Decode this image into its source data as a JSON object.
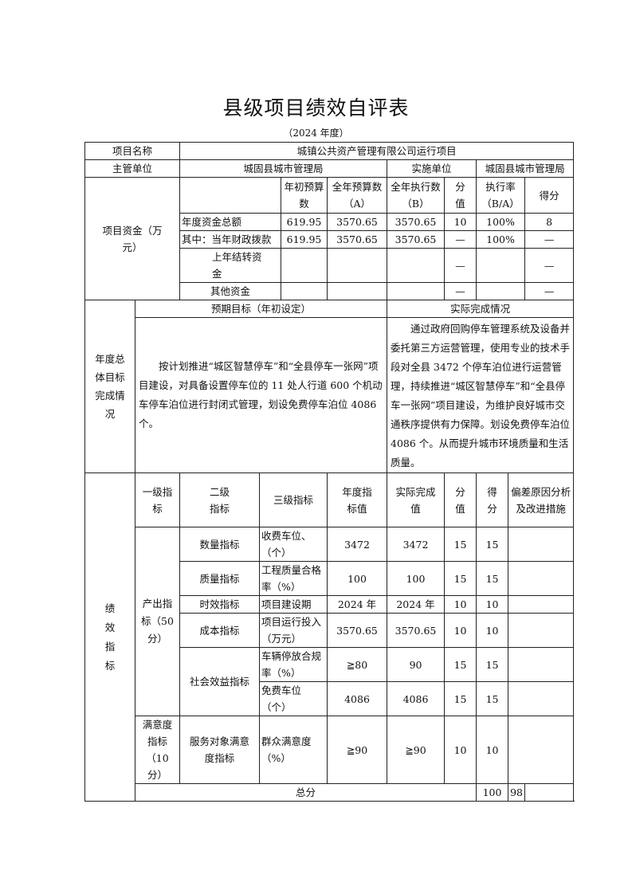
{
  "title": "县级项目绩效自评表",
  "subtitle": "（2024 年度）",
  "project": {
    "name_label": "项目名称",
    "name": "城镇公共资产管理有限公司运行项目",
    "dept_label": "主管单位",
    "dept": "城固县城市管理局",
    "impl_label": "实施单位",
    "impl": "城固县城市管理局"
  },
  "funds": {
    "label": "项目资金（万元）",
    "headers": [
      "年初预算数",
      "全年预算数（A）",
      "全年执行数（B）",
      "分值",
      "执行率（B/A）",
      "得分"
    ],
    "rows": [
      {
        "label": "年度资金总额",
        "initial": "619.95",
        "budget": "3570.65",
        "executed": "3570.65",
        "weight": "10",
        "rate": "100%",
        "score": "8"
      },
      {
        "label": "其中：当年财政拨款",
        "initial": "619.95",
        "budget": "3570.65",
        "executed": "3570.65",
        "weight": "—",
        "rate": "100%",
        "score": "—"
      },
      {
        "label": "上年结转资金",
        "initial": "",
        "budget": "",
        "executed": "",
        "weight": "—",
        "rate": "",
        "score": "—"
      },
      {
        "label": "其他资金",
        "initial": "",
        "budget": "",
        "executed": "",
        "weight": "—",
        "rate": "",
        "score": "—"
      }
    ]
  },
  "goals": {
    "label": "年度总体目标完成情况",
    "expected_header": "预期目标（年初设定）",
    "actual_header": "实际完成情况",
    "expected": "按计划推进“城区智慧停车”和“全县停车一张网”项目建设，对具备设置停车位的 11 处人行道 600 个机动车停车泊位进行封闭式管理，划设免费停车泊位 4086 个。",
    "actual": "通过政府回购停车管理系统及设备并委托第三方运营管理，使用专业的技术手段对全县 3472 个停车泊位进行运营管理，持续推进“城区智慧停车”和“全县停车一张网”项目建设，为维护良好城市交通秩序提供有力保障。划设免费停车泊位 4086 个。从而提升城市环境质量和生活质量。"
  },
  "indicators": {
    "label": "绩效指标",
    "headers": [
      "一级指标",
      "二级指标",
      "三级指标",
      "年度指标值",
      "实际完成值",
      "分值",
      "得分",
      "偏差原因分析及改进措施"
    ],
    "output_label": "产出指标（50分）",
    "satisfaction_label": "满意度指标（10分）",
    "social_label": "社会效益指标",
    "rows": [
      {
        "l2": "数量指标",
        "l3": "收费车位、（个）",
        "target": "3472",
        "actual": "3472",
        "weight": "15",
        "score": "15",
        "note": ""
      },
      {
        "l2": "质量指标",
        "l3": "工程质量合格率（%）",
        "target": "100",
        "actual": "100",
        "weight": "15",
        "score": "15",
        "note": ""
      },
      {
        "l2": "时效指标",
        "l3": "项目建设期",
        "target": "2024 年",
        "actual": "2024 年",
        "weight": "10",
        "score": "10",
        "note": ""
      },
      {
        "l2": "成本指标",
        "l3": "项目运行投入（万元）",
        "target": "3570.65",
        "actual": "3570.65",
        "weight": "10",
        "score": "10",
        "note": ""
      },
      {
        "l2": "社会效益指标",
        "l3": "车辆停放合规率（%）",
        "target": "≧80",
        "actual": "90",
        "weight": "15",
        "score": "15",
        "note": ""
      },
      {
        "l2": "社会效益指标",
        "l3": "免费车位（个）",
        "target": "4086",
        "actual": "4086",
        "weight": "15",
        "score": "15",
        "note": ""
      },
      {
        "l2": "服务对象满意度指标",
        "l3": "群众满意度（%）",
        "target": "≧90",
        "actual": "≧90",
        "weight": "10",
        "score": "10",
        "note": ""
      }
    ]
  },
  "total": {
    "label": "总分",
    "weight": "100",
    "score": "98",
    "note": ""
  }
}
